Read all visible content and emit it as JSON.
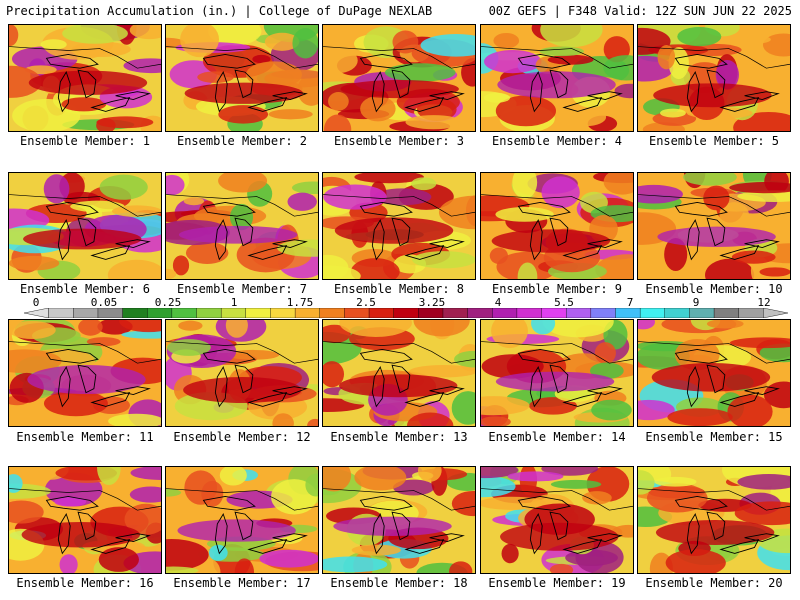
{
  "header": {
    "left": "Precipitation Accumulation (in.) | College of DuPage NEXLAB",
    "right": "00Z GEFS | F348 Valid: 12Z SUN JUN 22 2025"
  },
  "colorbar": {
    "labels": [
      "0",
      "0.05",
      "0.25",
      "1",
      "1.75",
      "2.5",
      "3.25",
      "4",
      "5.5",
      "7",
      "9",
      "12"
    ],
    "colors": [
      "#e0e0e0",
      "#c8c8c8",
      "#a8a8a8",
      "#8c8c8c",
      "#208020",
      "#30a030",
      "#50c040",
      "#90d040",
      "#c8e040",
      "#f0f040",
      "#f8d840",
      "#f8b030",
      "#f08020",
      "#e85020",
      "#d82010",
      "#c00010",
      "#a00020",
      "#a02050",
      "#a02080",
      "#b020b0",
      "#d030d0",
      "#e040f0",
      "#b060f0",
      "#8080f8",
      "#40c0f8",
      "#40f0f0",
      "#40d0d0",
      "#60b0b0",
      "#808080",
      "#a0a0a0",
      "#c0c0c0"
    ]
  },
  "members": [
    {
      "label": "Ensemble Member: 1"
    },
    {
      "label": "Ensemble Member: 2"
    },
    {
      "label": "Ensemble Member: 3"
    },
    {
      "label": "Ensemble Member: 4"
    },
    {
      "label": "Ensemble Member: 5"
    },
    {
      "label": "Ensemble Member: 6"
    },
    {
      "label": "Ensemble Member: 7"
    },
    {
      "label": "Ensemble Member: 8"
    },
    {
      "label": "Ensemble Member: 9"
    },
    {
      "label": "Ensemble Member: 10"
    },
    {
      "label": "Ensemble Member: 11"
    },
    {
      "label": "Ensemble Member: 12"
    },
    {
      "label": "Ensemble Member: 13"
    },
    {
      "label": "Ensemble Member: 14"
    },
    {
      "label": "Ensemble Member: 15"
    },
    {
      "label": "Ensemble Member: 16"
    },
    {
      "label": "Ensemble Member: 17"
    },
    {
      "label": "Ensemble Member: 18"
    },
    {
      "label": "Ensemble Member: 19"
    },
    {
      "label": "Ensemble Member: 20"
    }
  ]
}
